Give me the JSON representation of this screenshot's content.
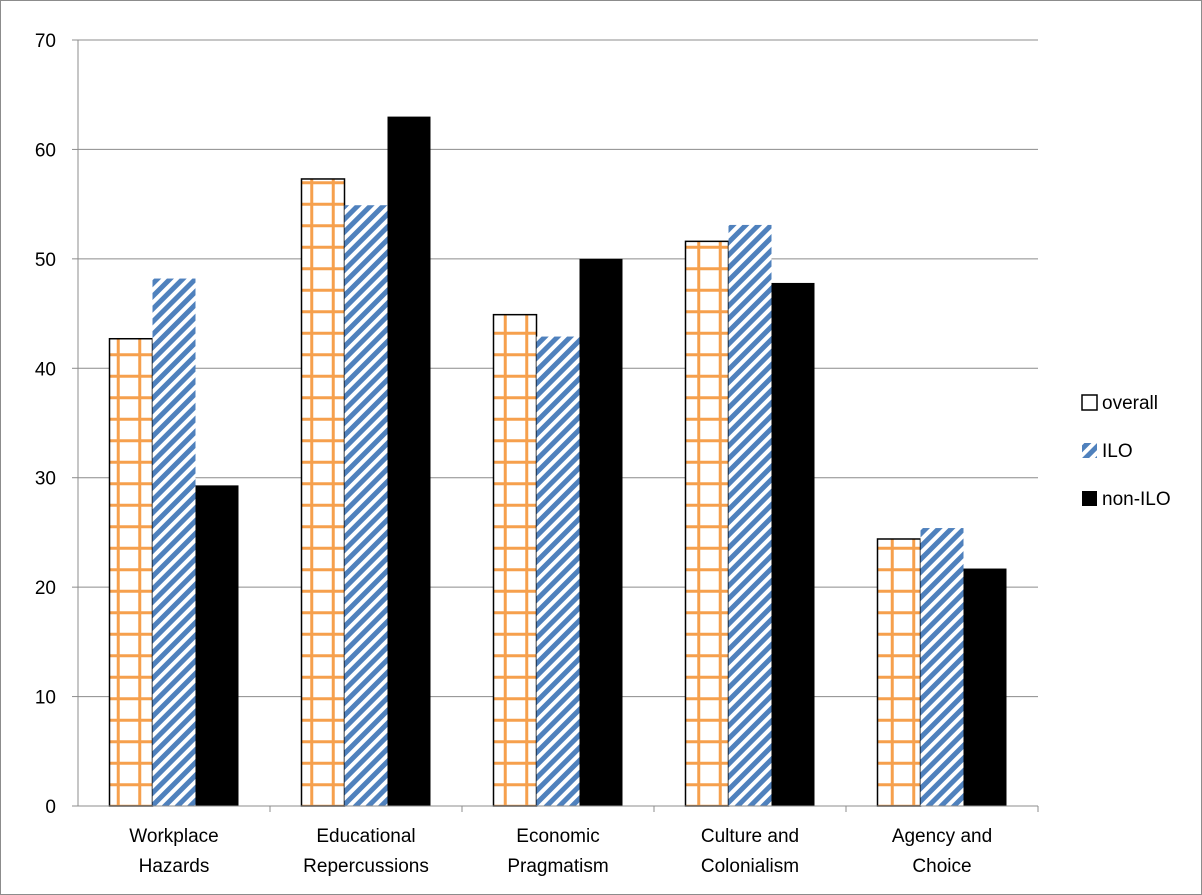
{
  "chart_data": {
    "type": "bar",
    "title": "",
    "xlabel": "",
    "ylabel": "",
    "ylim": [
      0,
      70
    ],
    "yticks": [
      0,
      10,
      20,
      30,
      40,
      50,
      60,
      70
    ],
    "grid": true,
    "legend_position": "right",
    "categories": [
      [
        "Workplace",
        "Hazards"
      ],
      [
        "Educational",
        "Repercussions"
      ],
      [
        "Economic",
        "Pragmatism"
      ],
      [
        "Culture and",
        "Colonialism"
      ],
      [
        "Agency and",
        "Choice"
      ]
    ],
    "series": [
      {
        "name": "overall",
        "values": [
          42.7,
          57.3,
          44.9,
          51.6,
          24.4
        ],
        "pattern": "orange-grid",
        "color": "#f6a04d"
      },
      {
        "name": "ILO",
        "values": [
          48.2,
          54.9,
          42.9,
          53.1,
          25.4
        ],
        "pattern": "blue-diagonal",
        "color": "#4f81bd"
      },
      {
        "name": "non-ILO",
        "values": [
          29.3,
          63.0,
          50.0,
          47.8,
          21.7
        ],
        "pattern": "solid-black",
        "color": "#000000"
      }
    ]
  }
}
